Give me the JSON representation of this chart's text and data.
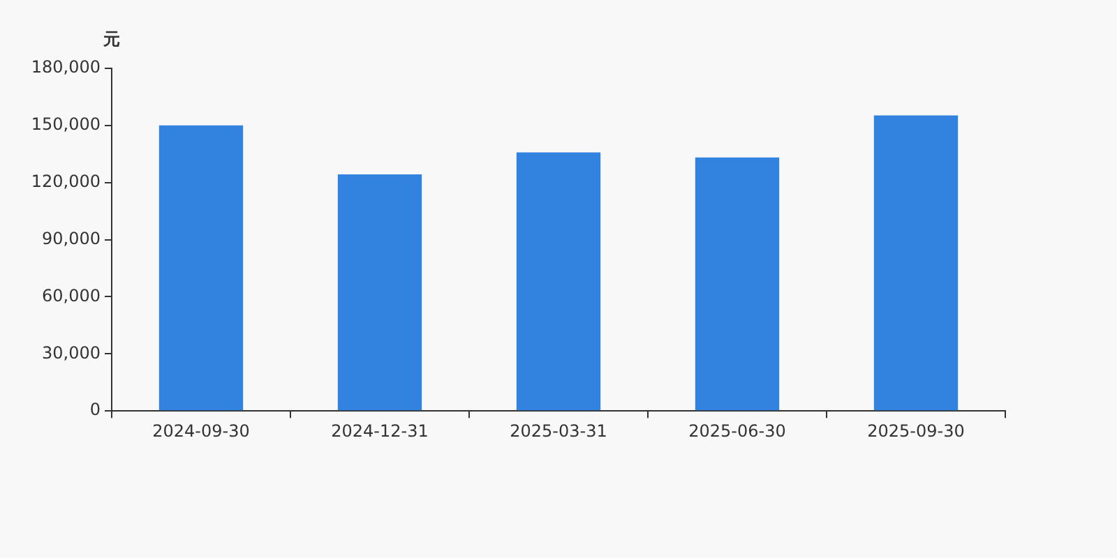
{
  "chart_data": {
    "type": "bar",
    "ylabel": "元",
    "categories": [
      "2024-09-30",
      "2024-12-31",
      "2025-03-31",
      "2025-06-30",
      "2025-09-30"
    ],
    "values": [
      150000,
      124300,
      135800,
      133200,
      155300
    ],
    "color": "#3282e0",
    "ylim": [
      0,
      180000
    ],
    "yticks": [
      {
        "value": 0,
        "label": "0"
      },
      {
        "value": 30000,
        "label": "30,000"
      },
      {
        "value": 60000,
        "label": "60,000"
      },
      {
        "value": 90000,
        "label": "90,000"
      },
      {
        "value": 120000,
        "label": "120,000"
      },
      {
        "value": 150000,
        "label": "150,000"
      },
      {
        "value": 180000,
        "label": "180,000"
      }
    ],
    "grid": false
  }
}
